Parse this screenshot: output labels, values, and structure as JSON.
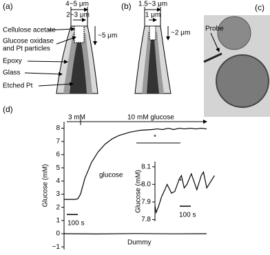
{
  "panel_a": {
    "label": "(a)",
    "outer_width": "4~5 μm",
    "inner_width": "2~3 μm",
    "length": "~5 μm",
    "layers": [
      "Cellulose acetate",
      "Glucose oxidase",
      "and Pt particles",
      "Epoxy",
      "Glass",
      "Etched Pt"
    ]
  },
  "panel_b": {
    "label": "(b)",
    "outer_width": "1.5~3 μm",
    "inner_width": "1 μm",
    "length": "~2 μm"
  },
  "panel_c": {
    "label": "(c)",
    "probe": "Probe"
  },
  "panel_d": {
    "label": "(d)"
  },
  "chart_data": [
    {
      "type": "line",
      "ylabel": "Glucose (mM)",
      "annotations": {
        "start": "3 mM",
        "step": "10 mM glucose",
        "curve": "glucose",
        "control": "Dummy",
        "marker": "*",
        "scale": "100 s"
      },
      "xlim": [
        0,
        1300
      ],
      "ylim": [
        -1.2,
        8.5
      ],
      "yticks": [
        {
          "value": -1,
          "label": "−1"
        },
        0,
        1,
        2,
        3,
        4,
        5,
        6,
        7,
        8
      ],
      "series": [
        {
          "name": "glucose",
          "color": "#000000",
          "x": [
            0,
            100,
            125,
            150,
            190,
            250,
            310,
            375,
            440,
            500,
            600,
            700,
            800,
            850,
            900,
            950,
            1000,
            1050,
            1100,
            1150,
            1200,
            1250,
            1300
          ],
          "values": [
            2.6,
            2.6,
            2.65,
            3.0,
            4.2,
            5.4,
            6.2,
            6.8,
            7.2,
            7.45,
            7.7,
            7.85,
            7.9,
            7.95,
            7.9,
            8.0,
            7.9,
            8.0,
            7.95,
            8.0,
            7.95,
            8.0,
            7.95
          ]
        },
        {
          "name": "Dummy",
          "color": "#000000",
          "x": [
            0,
            300,
            650,
            1000,
            1300
          ],
          "values": [
            0,
            -0.02,
            0.01,
            -0.01,
            0
          ]
        }
      ]
    },
    {
      "type": "line",
      "ylabel": "Glucose (mM)",
      "annotations": {
        "marker": "*",
        "scale": "100 s"
      },
      "xlim": [
        0,
        550
      ],
      "ylim": [
        7.79,
        8.13
      ],
      "yticks": [
        7.8,
        7.9,
        {
          "value": 8,
          "label": "8.0"
        },
        8.1
      ],
      "series": [
        {
          "name": "glucose",
          "color": "#000000",
          "x": [
            0,
            10,
            30,
            60,
            90,
            110,
            150,
            180,
            220,
            240,
            265,
            290,
            330,
            380,
            420,
            440,
            470,
            500,
            540
          ],
          "values": [
            7.88,
            7.84,
            7.87,
            7.93,
            7.97,
            8.0,
            7.95,
            7.96,
            8.03,
            8.05,
            7.98,
            8.0,
            8.06,
            7.97,
            8.05,
            8.07,
            7.98,
            8.01,
            8.05
          ]
        }
      ]
    }
  ]
}
